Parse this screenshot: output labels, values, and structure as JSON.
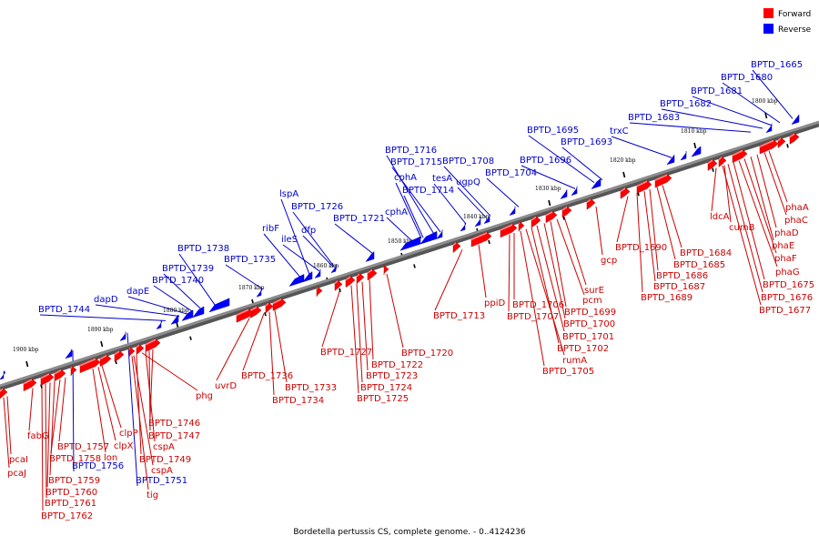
{
  "title": "Bordetella pertussis CS, complete genome. - 0..4124236",
  "legend": [
    {
      "label": "Forward",
      "color": "#ff0000"
    },
    {
      "label": "Reverse",
      "color": "#0000ff"
    }
  ],
  "colors": {
    "forward": "#ff0000",
    "reverse": "#0000ff",
    "forward_label": "#cc0000",
    "reverse_label": "#0000cc",
    "axis": "#8c8c8c"
  },
  "ticks": [
    "1900 kbp",
    "1890 kbp",
    "1880 kbp",
    "1870 kbp",
    "1860 kbp",
    "1850 kbp",
    "1840 kbp",
    "1830 kbp",
    "1820 kbp",
    "1810 kbp",
    "1800 kbp"
  ],
  "reverse_genes": [
    "BPTD_1665",
    "BPTD_1680",
    "BPTD_1681",
    "BPTD_1682",
    "BPTD_1683",
    "trxC",
    "BPTD_1693",
    "BPTD_1695",
    "BPTD_1696",
    "BPTD_1704",
    "BPTD_1708",
    "ugpQ",
    "tesA",
    "BPTD_1716",
    "BPTD_1715",
    "cphA",
    "BPTD_1714",
    "cphA",
    "BPTD_1721",
    "lspA",
    "BPTD_1726",
    "dfp",
    "ileS",
    "ribF",
    "BPTD_1735",
    "BPTD_1738",
    "BPTD_1739",
    "BPTD_1740",
    "dapE",
    "dapD",
    "BPTD_1744",
    "BPTD_1756",
    "BPTD_1751"
  ],
  "forward_genes": [
    "phaA",
    "phaC",
    "phaD",
    "phaE",
    "phaF",
    "phaG",
    "BPTD_1675",
    "BPTD_1676",
    "BPTD_1677",
    "ldcA",
    "cumB",
    "BPTD_1684",
    "BPTD_1685",
    "BPTD_1686",
    "BPTD_1687",
    "BPTD_1689",
    "BPTD_1690",
    "gcp",
    "surE",
    "pcm",
    "BPTD_1699",
    "BPTD_1700",
    "BPTD_1701",
    "BPTD_1702",
    "rumA",
    "BPTD_1705",
    "BPTD_1706",
    "BPTD_1707",
    "ppiD",
    "BPTD_1713",
    "BPTD_1720",
    "BPTD_1722",
    "BPTD_1723",
    "BPTD_1724",
    "BPTD_1725",
    "BPTD_1727",
    "BPTD_1733",
    "BPTD_1734",
    "BPTD_1736",
    "uvrD",
    "phg",
    "BPTD_1746",
    "BPTD_1747",
    "cspA",
    "BPTD_1749",
    "cspA",
    "tig",
    "clpP",
    "clpX",
    "lon",
    "BPTD_1757",
    "BPTD_1758",
    "BPTD_1759",
    "BPTD_1760",
    "BPTD_1761",
    "BPTD_1762",
    "fabG",
    "pcaI",
    "pcaJ"
  ]
}
